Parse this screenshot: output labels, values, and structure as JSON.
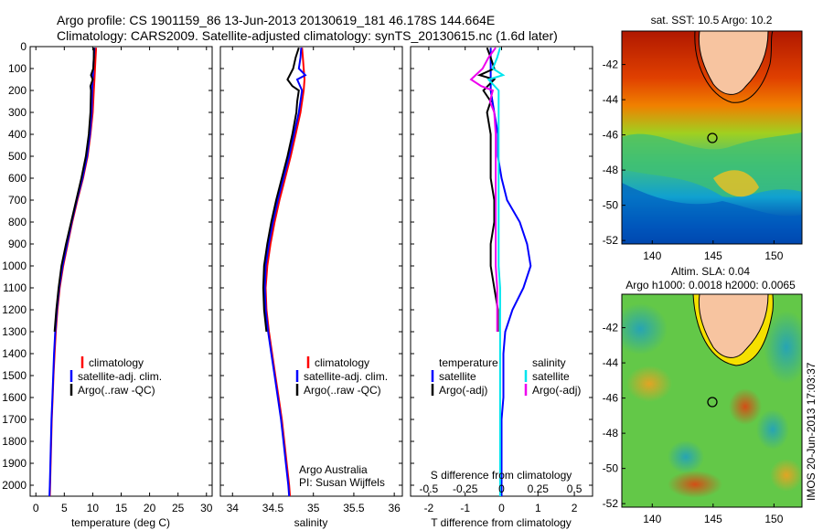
{
  "header": {
    "line1": "Argo profile: CS 1901159_86 13-Jun-2013 20130619_181 46.178S 144.664E",
    "line2": "Climatology: CARS2009. Satellite-adjusted climatology: synTS_20130615.nc (1.6d later)"
  },
  "side_text": "IMOS 20-Jun-2013 17:03:37",
  "colors": {
    "climatology": "#ff0000",
    "satellite": "#0000ff",
    "argo": "#000000",
    "sal_satellite": "#00e5ee",
    "sal_argo": "#ee00ee",
    "land": "#f7c4a0"
  },
  "chart_data": [
    {
      "type": "line",
      "name": "temperature",
      "xlabel": "temperature (deg C)",
      "xlim": [
        -1,
        31
      ],
      "xticks": [
        0,
        5,
        10,
        15,
        20,
        25,
        30
      ],
      "ylim": [
        0,
        2050
      ],
      "yticks": [
        0,
        100,
        200,
        300,
        400,
        500,
        600,
        700,
        800,
        900,
        1000,
        1100,
        1200,
        1300,
        1400,
        1500,
        1600,
        1700,
        1800,
        1900,
        2000
      ],
      "legend": [
        "climatology",
        "satellite-adj. clim.",
        "Argo(..raw -QC)"
      ],
      "series": [
        {
          "name": "climatology",
          "color": "#ff0000",
          "depth": [
            5,
            50,
            100,
            150,
            200,
            300,
            400,
            500,
            600,
            700,
            800,
            900,
            1000,
            1100,
            1200,
            1300,
            1400,
            1500,
            1600,
            1700,
            1800,
            1900,
            2000,
            2050
          ],
          "values": [
            10.6,
            10.5,
            10.4,
            10.3,
            10.2,
            10.0,
            9.6,
            9.1,
            8.3,
            7.3,
            6.4,
            5.6,
            4.8,
            4.2,
            3.8,
            3.5,
            3.3,
            3.1,
            2.95,
            2.8,
            2.7,
            2.6,
            2.5,
            2.45
          ]
        },
        {
          "name": "satellite-adj. clim.",
          "color": "#0000ff",
          "depth": [
            5,
            50,
            100,
            150,
            200,
            300,
            400,
            500,
            600,
            700,
            800,
            900,
            1000,
            1100,
            1200,
            1300,
            1400,
            1500,
            1600,
            1700,
            1800,
            1900,
            2000,
            2050
          ],
          "values": [
            10.3,
            10.2,
            10.1,
            10.0,
            9.9,
            9.8,
            9.5,
            9.0,
            8.2,
            7.2,
            6.3,
            5.5,
            4.7,
            4.1,
            3.7,
            3.4,
            3.2,
            3.05,
            2.9,
            2.75,
            2.65,
            2.55,
            2.45,
            2.4
          ]
        },
        {
          "name": "Argo(..raw -QC)",
          "color": "#000000",
          "depth": [
            5,
            50,
            100,
            130,
            150,
            180,
            200,
            300,
            400,
            500,
            600,
            700,
            800,
            900,
            1000,
            1100,
            1200,
            1300
          ],
          "values": [
            10.2,
            10.2,
            10.1,
            9.7,
            10.0,
            9.6,
            9.7,
            9.6,
            9.3,
            8.8,
            8.0,
            7.1,
            6.2,
            5.3,
            4.5,
            4.0,
            3.6,
            3.3
          ]
        }
      ]
    },
    {
      "type": "line",
      "name": "salinity",
      "xlabel": "salinity",
      "xlim": [
        33.85,
        36.1
      ],
      "xticks": [
        34,
        34.5,
        35,
        35.5,
        36
      ],
      "ylim": [
        0,
        2050
      ],
      "legend": [
        "climatology",
        "satellite-adj. clim.",
        "Argo(..raw -QC)"
      ],
      "annotation": [
        "Argo Australia",
        "PI: Susan Wijffels"
      ],
      "series": [
        {
          "name": "climatology",
          "color": "#ff0000",
          "depth": [
            5,
            50,
            100,
            150,
            200,
            300,
            400,
            500,
            600,
            700,
            800,
            900,
            1000,
            1100,
            1200,
            1300,
            1400,
            1500,
            1600,
            1700,
            1800,
            1900,
            2000,
            2050
          ],
          "values": [
            34.86,
            34.87,
            34.88,
            34.89,
            34.88,
            34.84,
            34.78,
            34.72,
            34.65,
            34.58,
            34.52,
            34.47,
            34.43,
            34.41,
            34.42,
            34.45,
            34.49,
            34.53,
            34.57,
            34.61,
            34.64,
            34.67,
            34.7,
            34.71
          ]
        },
        {
          "name": "satellite-adj. clim.",
          "color": "#0000ff",
          "depth": [
            5,
            50,
            100,
            130,
            150,
            200,
            300,
            400,
            500,
            600,
            700,
            800,
            900,
            1000,
            1100,
            1200,
            1300,
            1400,
            1500,
            1600,
            1700,
            1800,
            1900,
            2000,
            2050
          ],
          "values": [
            34.85,
            34.84,
            34.82,
            34.9,
            34.8,
            34.86,
            34.82,
            34.76,
            34.7,
            34.63,
            34.56,
            34.5,
            34.45,
            34.41,
            34.4,
            34.41,
            34.44,
            34.48,
            34.52,
            34.56,
            34.6,
            34.63,
            34.66,
            34.69,
            34.7
          ]
        },
        {
          "name": "Argo(..raw -QC)",
          "color": "#000000",
          "depth": [
            5,
            50,
            100,
            150,
            180,
            200,
            250,
            300,
            400,
            500,
            600,
            700,
            800,
            900,
            1000,
            1100,
            1200,
            1300
          ],
          "values": [
            34.82,
            34.78,
            34.75,
            34.68,
            34.74,
            34.82,
            34.8,
            34.79,
            34.74,
            34.68,
            34.61,
            34.54,
            34.48,
            34.43,
            34.39,
            34.38,
            34.39,
            34.42
          ]
        }
      ]
    },
    {
      "type": "line",
      "name": "differences",
      "xlabel": "T difference from climatology",
      "xlim": [
        -2.5,
        2.5
      ],
      "xticks": [
        -2,
        -1,
        0,
        1,
        2
      ],
      "x2label": "S difference from climatology",
      "x2ticks": [
        "-0.5",
        "-0.25",
        "0",
        "0.25",
        "0.5"
      ],
      "ylim": [
        0,
        2050
      ],
      "legend_temperature_title": "temperature",
      "legend_salinity_title": "salinity",
      "legend_temperature": [
        "satellite",
        "Argo(-adj)"
      ],
      "legend_salinity": [
        "satellite",
        "Argo(-adj)"
      ],
      "series": [
        {
          "name": "T satellite",
          "color": "#0000ff",
          "depth": [
            5,
            50,
            100,
            150,
            200,
            300,
            400,
            500,
            600,
            700,
            800,
            900,
            1000,
            1100,
            1200,
            1300,
            1400,
            1500,
            1600,
            1700,
            1800,
            1900,
            2000,
            2050
          ],
          "values": [
            -0.3,
            -0.3,
            -0.3,
            -0.3,
            -0.3,
            -0.2,
            -0.1,
            -0.1,
            0.0,
            0.15,
            0.5,
            0.7,
            0.8,
            0.6,
            0.3,
            0.1,
            0.05,
            0.05,
            0.05,
            0.0,
            0.0,
            0.0,
            0.0,
            0.0
          ]
        },
        {
          "name": "T Argo(-adj)",
          "color": "#000000",
          "depth": [
            5,
            50,
            100,
            130,
            150,
            200,
            250,
            300,
            400,
            500,
            600,
            700,
            800,
            900,
            1000,
            1100,
            1200,
            1300
          ],
          "values": [
            -0.4,
            -0.3,
            -0.2,
            -0.6,
            -0.2,
            -0.5,
            -0.3,
            -0.4,
            -0.3,
            -0.3,
            -0.3,
            -0.2,
            -0.2,
            -0.3,
            -0.3,
            -0.2,
            -0.1,
            -0.1
          ]
        },
        {
          "name": "S satellite",
          "color": "#00e5ee",
          "depth": [
            5,
            50,
            100,
            130,
            150,
            200,
            300,
            400,
            500,
            600,
            700,
            800,
            900,
            1000,
            1100,
            1200,
            1300,
            1400,
            1500,
            1600,
            1700,
            1800,
            1900,
            2000,
            2050
          ],
          "values": [
            -0.01,
            -0.03,
            -0.06,
            0.01,
            -0.09,
            -0.02,
            -0.02,
            -0.02,
            -0.02,
            -0.02,
            -0.02,
            -0.02,
            -0.02,
            -0.02,
            -0.01,
            -0.01,
            -0.01,
            -0.01,
            -0.01,
            -0.01,
            -0.01,
            -0.01,
            -0.01,
            -0.01,
            -0.01
          ]
        },
        {
          "name": "S Argo(-adj)",
          "color": "#ee00ee",
          "depth": [
            5,
            50,
            100,
            150,
            180,
            200,
            250,
            300,
            400,
            500,
            600,
            700,
            800,
            900,
            1000,
            1100,
            1200,
            1300
          ],
          "values": [
            -0.04,
            -0.09,
            -0.13,
            -0.21,
            -0.14,
            -0.06,
            -0.08,
            -0.05,
            -0.04,
            -0.04,
            -0.04,
            -0.04,
            -0.04,
            -0.04,
            -0.04,
            -0.03,
            -0.03,
            -0.03
          ]
        }
      ]
    },
    {
      "type": "heatmap",
      "name": "sst_map",
      "title": "sat. SST: 10.5  Argo: 10.2",
      "xticks": [
        140,
        145,
        150
      ],
      "yticks": [
        -42,
        -44,
        -46,
        -48,
        -50,
        -52
      ],
      "xlim": [
        137.5,
        152.3
      ],
      "ylim": [
        -52.2,
        -40.1
      ],
      "argo_position": {
        "lon": 144.664,
        "lat": -46.178
      }
    },
    {
      "type": "heatmap",
      "name": "sla_map",
      "title": "Altim. SLA: 0.04",
      "subtitle": "Argo h1000: 0.0018  h2000: 0.0065",
      "xticks": [
        140,
        145,
        150
      ],
      "yticks": [
        -42,
        -44,
        -46,
        -48,
        -50,
        -52
      ],
      "xlim": [
        137.5,
        152.3
      ],
      "ylim": [
        -52.2,
        -40.1
      ],
      "argo_position": {
        "lon": 144.664,
        "lat": -46.178
      }
    }
  ]
}
